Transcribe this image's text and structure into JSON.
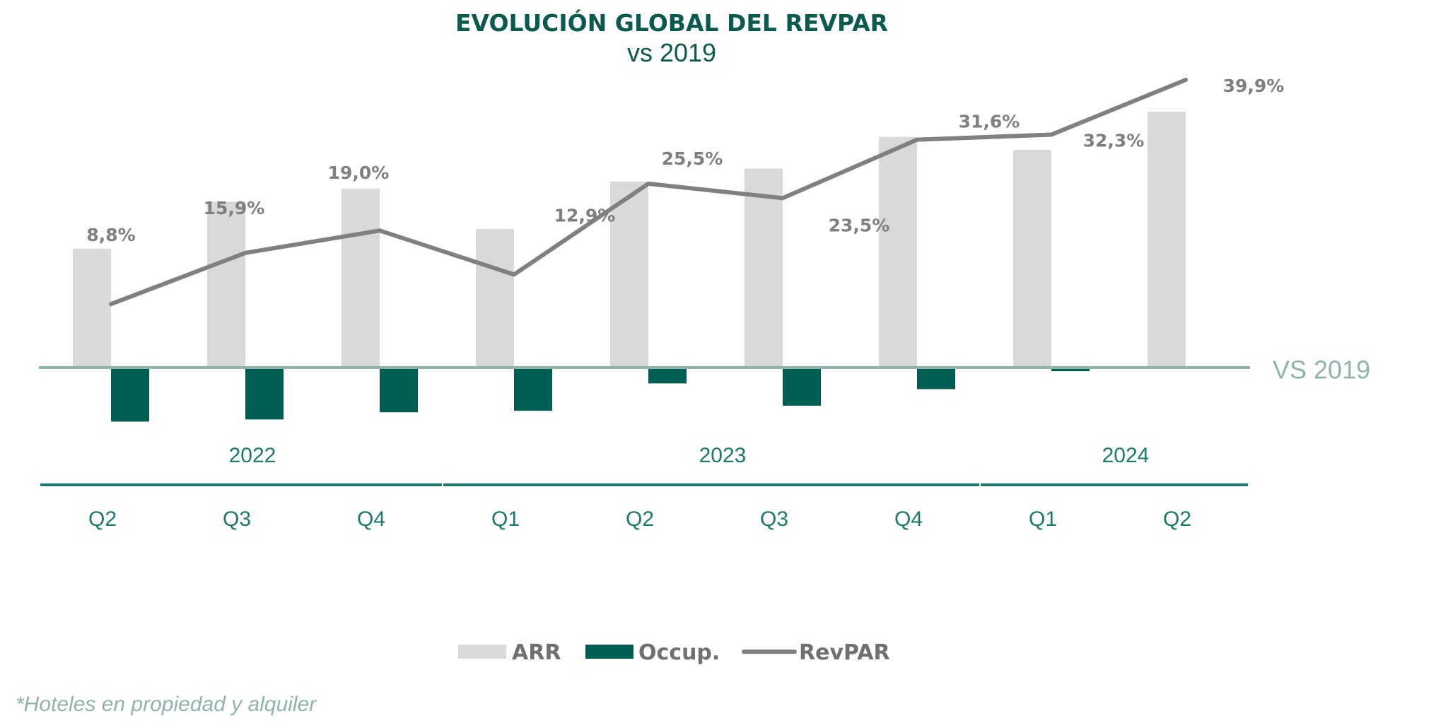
{
  "title": "EVOLUCIÓN GLOBAL DEL REVPAR",
  "subtitle": "vs 2019",
  "reference_label": "VS 2019",
  "footnote": "*Hoteles en propiedad y alquiler",
  "colors": {
    "title": "#0b5a4f",
    "arr": "#d9d9d9",
    "occup": "#005e53",
    "revpar": "#808080",
    "axis": "#8fb3ad",
    "year_line": "#1a7a6c",
    "label": "#7f7f7f"
  },
  "chart_data": {
    "type": "bar",
    "title": "EVOLUCIÓN GLOBAL DEL REVPAR",
    "subtitle": "vs 2019",
    "categories": [
      "Q2",
      "Q3",
      "Q4",
      "Q1",
      "Q2",
      "Q3",
      "Q4",
      "Q1",
      "Q2"
    ],
    "groups": [
      {
        "label": "2022",
        "from": 0,
        "to": 2
      },
      {
        "label": "2023",
        "from": 3,
        "to": 6
      },
      {
        "label": "2024",
        "from": 7,
        "to": 8
      }
    ],
    "series": [
      {
        "name": "ARR",
        "type": "bar",
        "values": [
          16.5,
          23.0,
          24.8,
          19.2,
          25.8,
          27.6,
          32.0,
          30.2,
          35.5
        ]
      },
      {
        "name": "Occup.",
        "type": "bar",
        "values": [
          -7.5,
          -7.2,
          -6.2,
          -6.0,
          -2.2,
          -5.3,
          -3.0,
          -0.5,
          0
        ]
      },
      {
        "name": "RevPAR",
        "type": "line",
        "values": [
          8.8,
          15.9,
          19.0,
          12.9,
          25.5,
          23.5,
          31.6,
          32.3,
          39.9
        ]
      }
    ],
    "data_labels": [
      "8,8%",
      "15,9%",
      "19,0%",
      "12,9%",
      "25,5%",
      "23,5%",
      "31,6%",
      "32,3%",
      "39,9%"
    ],
    "ylim": [
      -10,
      40
    ],
    "grid": false,
    "legend": "bottom"
  }
}
